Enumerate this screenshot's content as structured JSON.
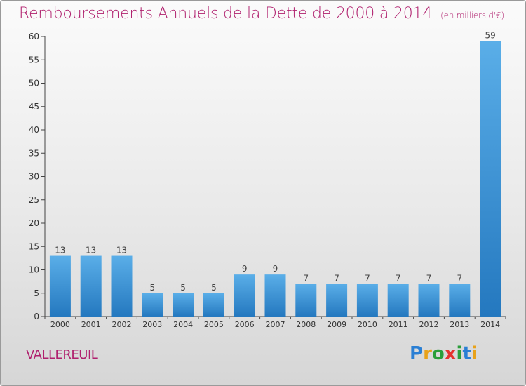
{
  "title": "Remboursements Annuels de la Dette de 2000 à 2014",
  "unit": "(en milliers d'€)",
  "commune": "VALLEREUIL",
  "brand": {
    "letters": [
      "P",
      "r",
      "o",
      "x",
      "i",
      "t",
      "i"
    ],
    "colors": [
      "#2a7fd4",
      "#e8a21a",
      "#2a9e3a",
      "#e5322d",
      "#2a9e3a",
      "#2a7fd4",
      "#e8a21a"
    ]
  },
  "chart_data": {
    "type": "bar",
    "categories": [
      "2000",
      "2001",
      "2002",
      "2003",
      "2004",
      "2005",
      "2006",
      "2007",
      "2008",
      "2009",
      "2010",
      "2011",
      "2012",
      "2013",
      "2014"
    ],
    "values": [
      13,
      13,
      13,
      5,
      5,
      5,
      9,
      9,
      7,
      7,
      7,
      7,
      7,
      7,
      59
    ],
    "ylim": [
      0,
      60
    ],
    "yticks": [
      0,
      5,
      10,
      15,
      20,
      25,
      30,
      35,
      40,
      45,
      50,
      55,
      60
    ],
    "grid": false,
    "bar_color_light": "#5aaee8",
    "bar_color_dark": "#2478bf",
    "label_color": "#444444"
  }
}
